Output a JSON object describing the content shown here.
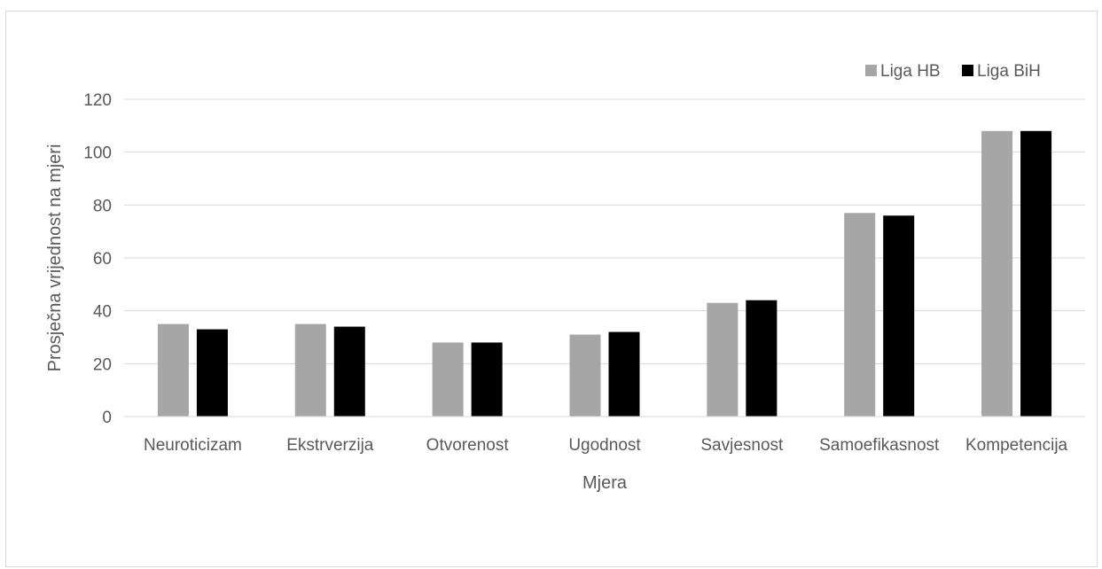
{
  "chart_data": {
    "type": "bar",
    "title": "",
    "xlabel": "Mjera",
    "ylabel": "Prosječna vrijednost na mjeri",
    "categories": [
      "Neuroticizam",
      "Ekstrverzija",
      "Otvorenost",
      "Ugodnost",
      "Savjesnost",
      "Samoefikasnost",
      "Kompetencija"
    ],
    "series": [
      {
        "name": "Liga HB",
        "color": "#a6a6a6",
        "values": [
          35,
          35,
          28,
          31,
          43,
          77,
          108
        ]
      },
      {
        "name": "Liga BiH",
        "color": "#000000",
        "values": [
          33,
          34,
          28,
          32,
          44,
          76,
          108
        ]
      }
    ],
    "ylim": [
      0,
      120
    ],
    "yticks": [
      0,
      20,
      40,
      60,
      80,
      100,
      120
    ],
    "grid": true,
    "legend_position": "top-right"
  }
}
